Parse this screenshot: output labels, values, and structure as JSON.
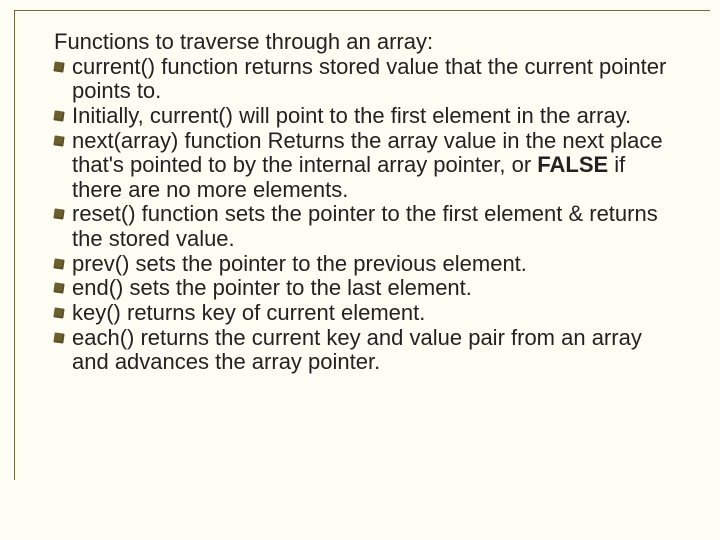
{
  "header": "Functions to traverse through an array:",
  "items": [
    {
      "html": "current() function returns stored value that the current pointer points to."
    },
    {
      "html": "Initially, current() will point to the first element in the array."
    },
    {
      "html": "next(array)  function Returns the array value in the next place that's pointed to by the internal array pointer, or <span class=\"b\">FALSE</span> if there are no more elements."
    },
    {
      "html": "reset() function sets the pointer to the first element & returns the stored value."
    },
    {
      "html": "prev() sets the pointer to the previous element."
    },
    {
      "html": "end() sets the pointer to the last element."
    },
    {
      "html": "key() returns key of current element."
    },
    {
      "html": "each() returns the current key and value pair from an array and advances the array pointer."
    }
  ]
}
